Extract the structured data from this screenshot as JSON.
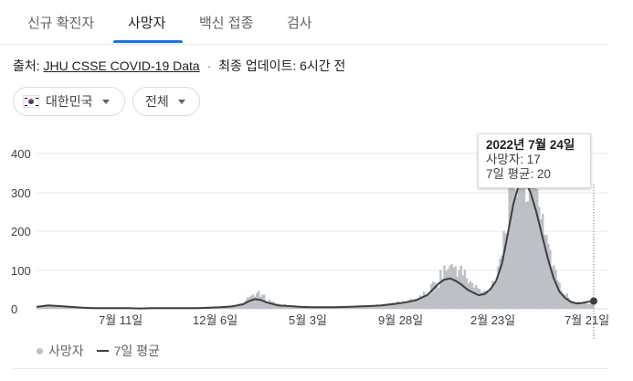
{
  "tabs": [
    "신규 확진자",
    "사망자",
    "백신 접종",
    "검사"
  ],
  "active_tab": 1,
  "source": {
    "prefix": "출처:",
    "link_text": "JHU CSSE COVID-19 Data",
    "separator": "·",
    "updated": "최종 업데이트: 6시간 전"
  },
  "filters": {
    "region": "대한민국",
    "scope": "전체"
  },
  "tooltip": {
    "date": "2022년 7월 24일",
    "deaths": "사망자: 17",
    "avg": "7일 평균: 20"
  },
  "legend": {
    "bars": "사망자",
    "line": "7일 평균"
  },
  "colors": {
    "accent": "#1a73e8",
    "bars": "#bdc1c6",
    "line": "#3c4043"
  },
  "chart_data": {
    "type": "bar",
    "ylim": [
      0,
      400
    ],
    "yticks": [
      "400",
      "300",
      "200",
      "100",
      "0"
    ],
    "xticks": [
      "7월 11일",
      "12월 6일",
      "5월 3일",
      "9월 28일",
      "2월 23일",
      "7월 21일"
    ],
    "series": [
      {
        "name": "사망자",
        "points": [
          [
            0,
            5
          ],
          [
            2,
            10
          ],
          [
            4,
            8
          ],
          [
            6,
            6
          ],
          [
            8,
            3
          ],
          [
            10,
            2
          ],
          [
            12,
            2
          ],
          [
            14,
            3
          ],
          [
            16,
            2
          ],
          [
            18,
            1
          ],
          [
            20,
            2
          ],
          [
            22,
            2
          ],
          [
            24,
            3
          ],
          [
            26,
            2
          ],
          [
            28,
            2
          ],
          [
            30,
            4
          ],
          [
            32,
            5
          ],
          [
            34,
            8
          ],
          [
            36,
            12
          ],
          [
            37,
            30
          ],
          [
            38,
            40
          ],
          [
            39,
            35
          ],
          [
            40,
            25
          ],
          [
            41,
            18
          ],
          [
            42,
            12
          ],
          [
            44,
            8
          ],
          [
            46,
            6
          ],
          [
            48,
            5
          ],
          [
            50,
            4
          ],
          [
            52,
            4
          ],
          [
            54,
            5
          ],
          [
            56,
            6
          ],
          [
            58,
            7
          ],
          [
            60,
            10
          ],
          [
            62,
            14
          ],
          [
            64,
            18
          ],
          [
            66,
            25
          ],
          [
            68,
            40
          ],
          [
            69,
            60
          ],
          [
            70,
            70
          ],
          [
            71,
            105
          ],
          [
            72,
            100
          ],
          [
            73,
            110
          ],
          [
            74,
            95
          ],
          [
            75,
            80
          ],
          [
            76,
            60
          ],
          [
            77,
            50
          ],
          [
            78,
            40
          ],
          [
            79,
            55
          ],
          [
            80,
            80
          ],
          [
            81,
            150
          ],
          [
            82,
            230
          ],
          [
            83,
            320
          ],
          [
            84,
            350
          ],
          [
            85,
            370
          ],
          [
            86,
            340
          ],
          [
            87,
            300
          ],
          [
            88,
            260
          ],
          [
            89,
            180
          ],
          [
            90,
            120
          ],
          [
            91,
            60
          ],
          [
            92,
            40
          ],
          [
            93,
            25
          ],
          [
            94,
            18
          ],
          [
            95,
            20
          ],
          [
            96,
            17
          ],
          [
            97,
            17
          ]
        ]
      },
      {
        "name": "7일 평균",
        "points": [
          [
            0,
            5
          ],
          [
            2,
            9
          ],
          [
            4,
            7
          ],
          [
            6,
            5
          ],
          [
            8,
            3
          ],
          [
            10,
            2
          ],
          [
            12,
            2
          ],
          [
            14,
            2
          ],
          [
            16,
            2
          ],
          [
            18,
            1
          ],
          [
            20,
            2
          ],
          [
            22,
            2
          ],
          [
            24,
            2
          ],
          [
            26,
            2
          ],
          [
            28,
            2
          ],
          [
            30,
            3
          ],
          [
            32,
            4
          ],
          [
            34,
            6
          ],
          [
            36,
            12
          ],
          [
            37,
            20
          ],
          [
            38,
            25
          ],
          [
            39,
            23
          ],
          [
            40,
            17
          ],
          [
            41,
            13
          ],
          [
            42,
            9
          ],
          [
            44,
            7
          ],
          [
            46,
            5
          ],
          [
            48,
            4
          ],
          [
            50,
            4
          ],
          [
            52,
            4
          ],
          [
            54,
            5
          ],
          [
            56,
            6
          ],
          [
            58,
            7
          ],
          [
            60,
            9
          ],
          [
            62,
            12
          ],
          [
            64,
            16
          ],
          [
            66,
            22
          ],
          [
            68,
            35
          ],
          [
            69,
            50
          ],
          [
            70,
            65
          ],
          [
            71,
            75
          ],
          [
            72,
            78
          ],
          [
            73,
            72
          ],
          [
            74,
            62
          ],
          [
            75,
            50
          ],
          [
            76,
            42
          ],
          [
            77,
            35
          ],
          [
            78,
            38
          ],
          [
            79,
            50
          ],
          [
            80,
            72
          ],
          [
            81,
            115
          ],
          [
            82,
            190
          ],
          [
            83,
            270
          ],
          [
            84,
            320
          ],
          [
            85,
            330
          ],
          [
            86,
            300
          ],
          [
            87,
            250
          ],
          [
            88,
            190
          ],
          [
            89,
            130
          ],
          [
            90,
            80
          ],
          [
            91,
            45
          ],
          [
            92,
            28
          ],
          [
            93,
            18
          ],
          [
            94,
            14
          ],
          [
            95,
            15
          ],
          [
            96,
            18
          ],
          [
            97,
            20
          ]
        ]
      }
    ]
  }
}
